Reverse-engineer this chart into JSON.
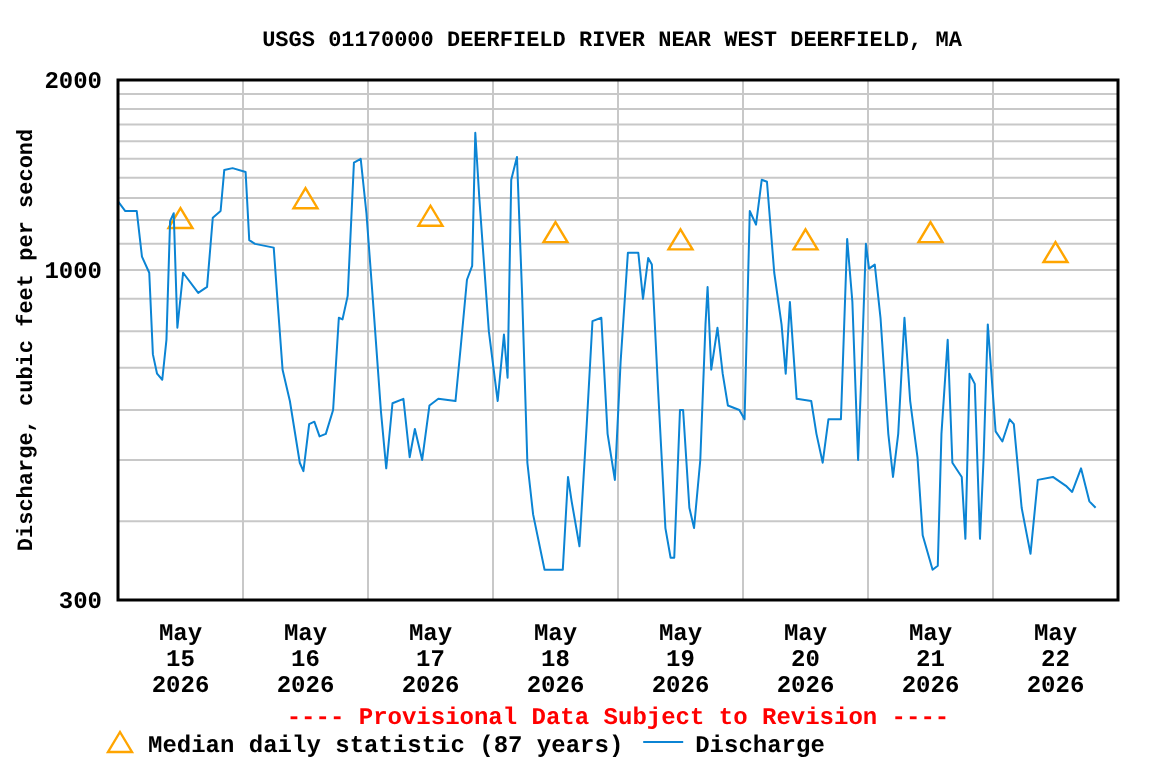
{
  "chart_data": {
    "type": "line",
    "title": "USGS 01170000 DEERFIELD RIVER NEAR WEST DEERFIELD, MA",
    "ylabel": "Discharge, cubic feet per second",
    "annotations": [
      "---- Provisional Data Subject to Revision ----"
    ],
    "log": "y",
    "grid": true,
    "legend": "bottom",
    "xlim": [
      "2026-05-15T00:00",
      "2026-05-23T00:00"
    ],
    "xticks": [
      {
        "value": "2026-05-15T12:00",
        "label": "May 15 2026"
      },
      {
        "value": "2026-05-16T12:00",
        "label": "May 16 2026"
      },
      {
        "value": "2026-05-17T12:00",
        "label": "May 17 2026"
      },
      {
        "value": "2026-05-18T12:00",
        "label": "May 18 2026"
      },
      {
        "value": "2026-05-19T12:00",
        "label": "May 19 2026"
      },
      {
        "value": "2026-05-20T12:00",
        "label": "May 20 2026"
      },
      {
        "value": "2026-05-21T12:00",
        "label": "May 21 2026"
      },
      {
        "value": "2026-05-22T12:00",
        "label": "May 22 2026"
      },
      {
        "value": "2026-05-16T00:00",
        "label": null
      },
      {
        "value": "2026-05-17T00:00",
        "label": null
      },
      {
        "value": "2026-05-18T00:00",
        "label": null
      },
      {
        "value": "2026-05-19T00:00",
        "label": null
      },
      {
        "value": "2026-05-20T00:00",
        "label": null
      },
      {
        "value": "2026-05-21T00:00",
        "label": null
      },
      {
        "value": "2026-05-22T00:00",
        "label": null
      }
    ],
    "ylim": [
      300,
      2000
    ],
    "yticks": [
      300,
      {
        "value": 400,
        "label": null
      },
      {
        "value": 500,
        "label": null
      },
      {
        "value": 600,
        "label": null
      },
      {
        "value": 700,
        "label": null
      },
      {
        "value": 800,
        "label": null
      },
      {
        "value": 900,
        "label": null
      },
      1000,
      {
        "value": 1100,
        "label": null
      },
      {
        "value": 1200,
        "label": null
      },
      {
        "value": 1300,
        "label": null
      },
      {
        "value": 1400,
        "label": null
      },
      {
        "value": 1500,
        "label": null
      },
      {
        "value": 1600,
        "label": null
      },
      {
        "value": 1700,
        "label": null
      },
      {
        "value": 1800,
        "label": null
      },
      {
        "value": 1900,
        "label": null
      },
      2000
    ],
    "series": [
      {
        "name": "Median daily statistic (87 years)",
        "type": "scatter",
        "marker": "triangle",
        "color": "#ffa500",
        "x": [
          "2026-05-15T12:00",
          "2026-05-16T12:00",
          "2026-05-17T12:00",
          "2026-05-18T12:00",
          "2026-05-19T12:00",
          "2026-05-20T12:00",
          "2026-05-21T12:00",
          "2026-05-22T12:00"
        ],
        "values": [
          1200,
          1290,
          1210,
          1140,
          1110,
          1110,
          1140,
          1060
        ]
      },
      {
        "name": "Discharge",
        "color": "#0b84d4",
        "line_style": "solid",
        "x": [
          "2026-05-15T00:00",
          "2026-05-15T01:24",
          "2026-05-15T03:36",
          "2026-05-15T04:36",
          "2026-05-15T06:00",
          "2026-05-15T06:42",
          "2026-05-15T07:30",
          "2026-05-15T08:30",
          "2026-05-15T09:18",
          "2026-05-15T10:00",
          "2026-05-15T10:42",
          "2026-05-15T11:24",
          "2026-05-15T12:30",
          "2026-05-15T15:24",
          "2026-05-15T17:06",
          "2026-05-15T18:12",
          "2026-05-15T19:42",
          "2026-05-15T20:24",
          "2026-05-15T22:00",
          "2026-05-16T00:30",
          "2026-05-16T01:12",
          "2026-05-16T02:18",
          "2026-05-16T05:54",
          "2026-05-16T06:36",
          "2026-05-16T07:36",
          "2026-05-16T09:00",
          "2026-05-16T10:54",
          "2026-05-16T11:36",
          "2026-05-16T12:42",
          "2026-05-16T13:42",
          "2026-05-16T14:42",
          "2026-05-16T15:54",
          "2026-05-16T17:18",
          "2026-05-16T18:24",
          "2026-05-16T19:06",
          "2026-05-16T20:06",
          "2026-05-16T21:18",
          "2026-05-16T22:36",
          "2026-05-16T23:42",
          "2026-05-17T01:06",
          "2026-05-17T02:30",
          "2026-05-17T03:30",
          "2026-05-17T04:42",
          "2026-05-17T06:48",
          "2026-05-17T08:00",
          "2026-05-17T09:00",
          "2026-05-17T10:24",
          "2026-05-17T11:48",
          "2026-05-17T13:30",
          "2026-05-17T16:48",
          "2026-05-17T17:48",
          "2026-05-17T19:00",
          "2026-05-17T20:00",
          "2026-05-17T20:36",
          "2026-05-17T21:24",
          "2026-05-17T23:12",
          "2026-05-18T00:54",
          "2026-05-18T02:06",
          "2026-05-18T02:48",
          "2026-05-18T03:30",
          "2026-05-18T04:36",
          "2026-05-18T05:36",
          "2026-05-18T06:36",
          "2026-05-18T07:42",
          "2026-05-18T09:54",
          "2026-05-18T13:24",
          "2026-05-18T14:24",
          "2026-05-18T15:06",
          "2026-05-18T16:36",
          "2026-05-18T18:00",
          "2026-05-18T19:06",
          "2026-05-18T20:48",
          "2026-05-18T22:00",
          "2026-05-18T23:24",
          "2026-05-19T00:30",
          "2026-05-19T01:54",
          "2026-05-19T03:54",
          "2026-05-19T04:48",
          "2026-05-19T05:48",
          "2026-05-19T06:30",
          "2026-05-19T07:42",
          "2026-05-19T09:06",
          "2026-05-19T10:06",
          "2026-05-19T10:48",
          "2026-05-19T11:54",
          "2026-05-19T12:30",
          "2026-05-19T13:42",
          "2026-05-19T14:36",
          "2026-05-19T15:48",
          "2026-05-19T16:48",
          "2026-05-19T17:12",
          "2026-05-19T17:54",
          "2026-05-19T19:06",
          "2026-05-19T20:06",
          "2026-05-19T21:06",
          "2026-05-19T23:18",
          "2026-05-20T00:18",
          "2026-05-20T01:18",
          "2026-05-20T02:30",
          "2026-05-20T03:36",
          "2026-05-20T04:36",
          "2026-05-20T06:00",
          "2026-05-20T07:24",
          "2026-05-20T08:12",
          "2026-05-20T09:00",
          "2026-05-20T10:18",
          "2026-05-20T13:06",
          "2026-05-20T14:06",
          "2026-05-20T15:18",
          "2026-05-20T16:24",
          "2026-05-20T18:48",
          "2026-05-20T20:00",
          "2026-05-20T21:00",
          "2026-05-20T22:06",
          "2026-05-20T22:42",
          "2026-05-20T23:36",
          "2026-05-21T00:12",
          "2026-05-21T01:18",
          "2026-05-21T02:24",
          "2026-05-21T03:54",
          "2026-05-21T04:48",
          "2026-05-21T05:48",
          "2026-05-21T07:00",
          "2026-05-21T08:06",
          "2026-05-21T09:30",
          "2026-05-21T10:30",
          "2026-05-21T12:24",
          "2026-05-21T13:24",
          "2026-05-21T14:06",
          "2026-05-21T15:18",
          "2026-05-21T16:12",
          "2026-05-21T18:00",
          "2026-05-21T18:42",
          "2026-05-21T19:30",
          "2026-05-21T20:30",
          "2026-05-21T21:30",
          "2026-05-21T22:12",
          "2026-05-21T23:00",
          "2026-05-22T00:30",
          "2026-05-22T01:48",
          "2026-05-22T03:12",
          "2026-05-22T04:00",
          "2026-05-22T05:30",
          "2026-05-22T07:12",
          "2026-05-22T08:36",
          "2026-05-22T11:30",
          "2026-05-22T14:00",
          "2026-05-22T15:12",
          "2026-05-22T16:54",
          "2026-05-22T18:30",
          "2026-05-22T19:42"
        ],
        "values": [
          1285,
          1240,
          1240,
          1050,
          990,
          735,
          685,
          670,
          775,
          1195,
          1230,
          810,
          990,
          920,
          940,
          1210,
          1240,
          1440,
          1450,
          1430,
          1115,
          1100,
          1085,
          900,
          695,
          620,
          495,
          480,
          570,
          575,
          545,
          550,
          600,
          840,
          835,
          910,
          1480,
          1500,
          1230,
          860,
          595,
          485,
          615,
          625,
          505,
          560,
          500,
          610,
          625,
          620,
          755,
          965,
          1015,
          1650,
          1290,
          800,
          620,
          790,
          675,
          1390,
          1510,
          910,
          495,
          410,
          335,
          335,
          470,
          430,
          365,
          570,
          830,
          840,
          550,
          465,
          715,
          1065,
          1065,
          900,
          1045,
          1020,
          645,
          390,
          350,
          350,
          600,
          600,
          420,
          390,
          500,
          820,
          940,
          695,
          810,
          685,
          610,
          600,
          580,
          1240,
          1180,
          1390,
          1380,
          990,
          820,
          685,
          890,
          625,
          620,
          550,
          495,
          580,
          580,
          1120,
          890,
          500,
          675,
          1100,
          1005,
          1020,
          840,
          550,
          470,
          550,
          840,
          620,
          505,
          380,
          335,
          340,
          550,
          775,
          495,
          470,
          375,
          685,
          660,
          375,
          505,
          820,
          555,
          535,
          580,
          570,
          420,
          355,
          465,
          470,
          455,
          445,
          485,
          430,
          420
        ]
      }
    ]
  }
}
